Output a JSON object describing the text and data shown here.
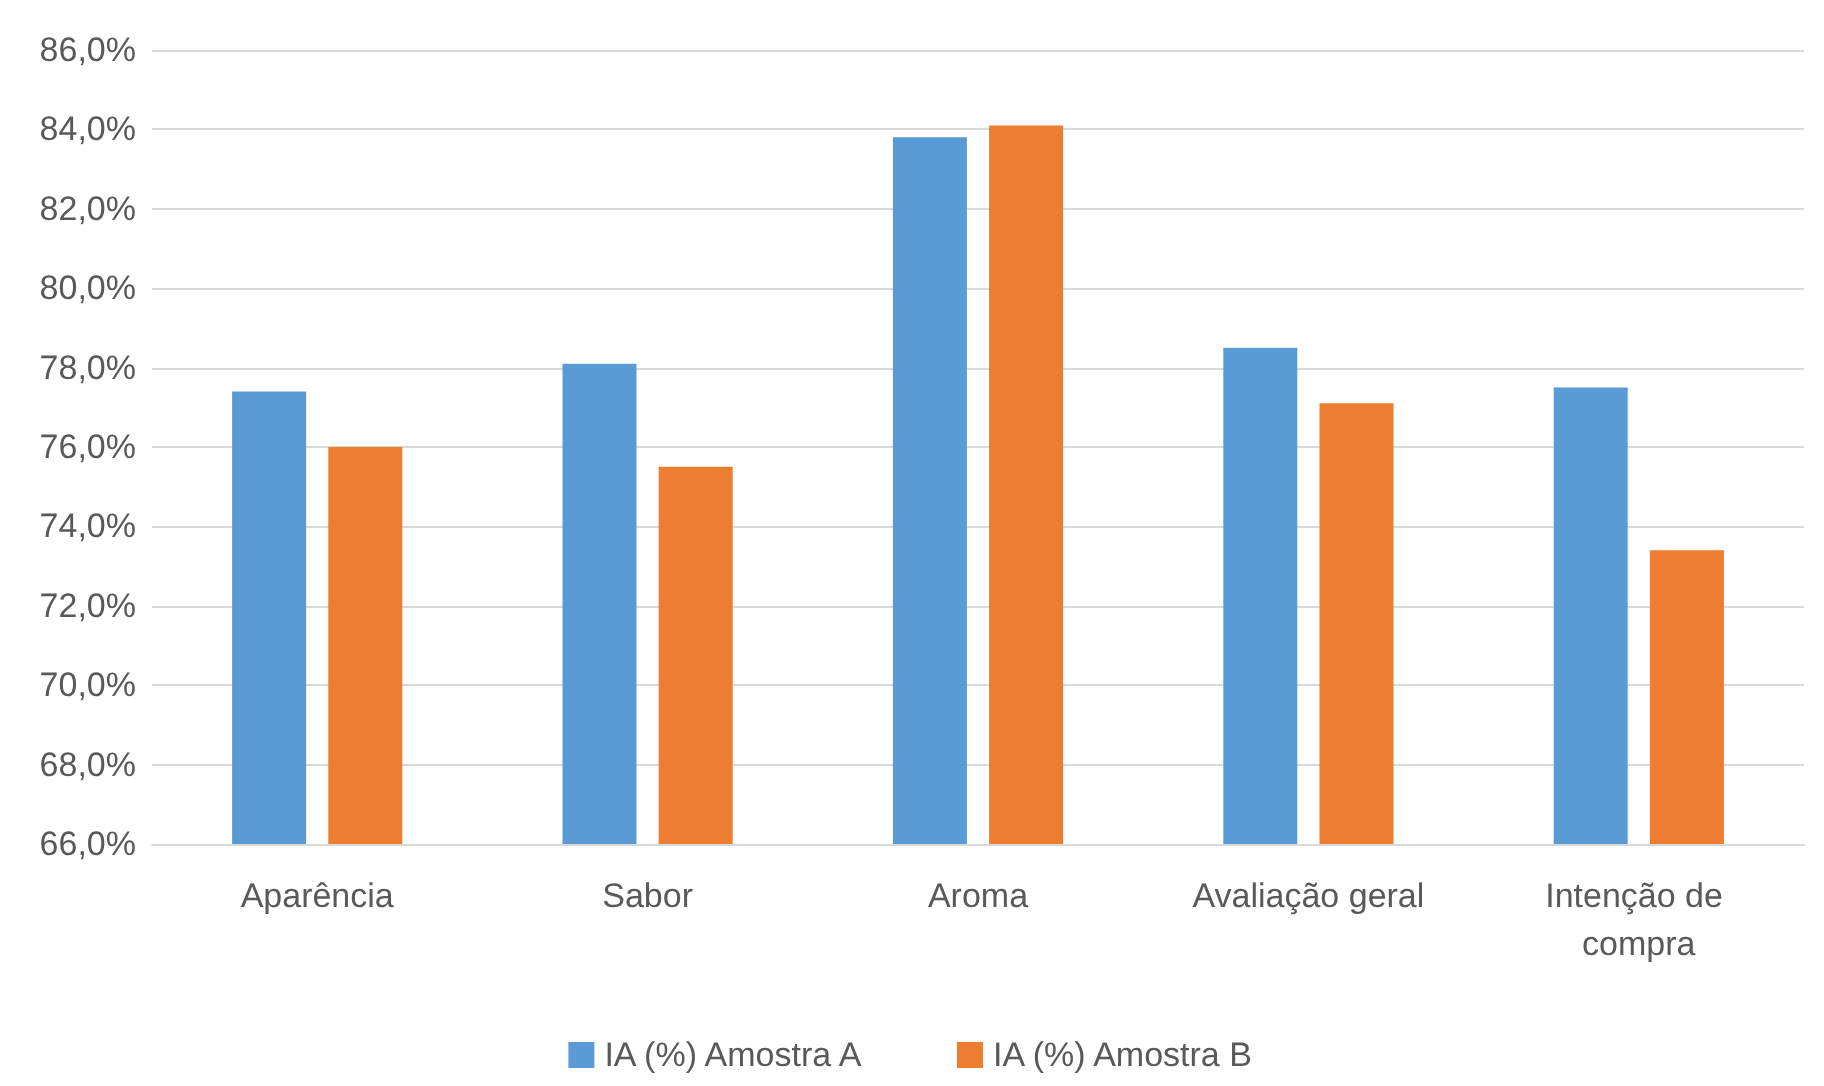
{
  "chart_data": {
    "type": "bar",
    "categories": [
      "Aparência",
      "Sabor",
      "Aroma",
      "Avaliação geral",
      "Intenção de compra"
    ],
    "series": [
      {
        "name": "IA (%) Amostra A",
        "color": "#5b9bd5",
        "values": [
          77.4,
          78.1,
          83.8,
          78.5,
          77.5
        ]
      },
      {
        "name": "IA (%) Amostra B",
        "color": "#ed7d31",
        "values": [
          76.0,
          75.5,
          84.1,
          77.1,
          73.4
        ]
      }
    ],
    "ylim": [
      66,
      86
    ],
    "yticks": [
      {
        "value": 66,
        "label": "66,0%"
      },
      {
        "value": 68,
        "label": "68,0%"
      },
      {
        "value": 70,
        "label": "70,0%"
      },
      {
        "value": 72,
        "label": "72,0%"
      },
      {
        "value": 74,
        "label": "74,0%"
      },
      {
        "value": 76,
        "label": "76,0%"
      },
      {
        "value": 78,
        "label": "78,0%"
      },
      {
        "value": 80,
        "label": "80,0%"
      },
      {
        "value": 82,
        "label": "82,0%"
      },
      {
        "value": 84,
        "label": "84,0%"
      },
      {
        "value": 86,
        "label": "86,0%"
      }
    ],
    "grid": "y",
    "legend": "bottom"
  }
}
